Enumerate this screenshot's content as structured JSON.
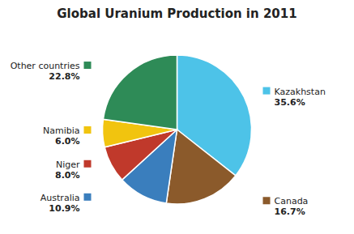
{
  "chart_data": {
    "type": "pie",
    "title": "Global Uranium Production in 2011",
    "categories": [
      "Kazakhstan",
      "Canada",
      "Australia",
      "Niger",
      "Namibia",
      "Other countries"
    ],
    "values": [
      35.6,
      16.7,
      10.9,
      8.0,
      6.0,
      22.8
    ],
    "value_labels": [
      "35.6%",
      "16.7%",
      "10.9%",
      "8.0%",
      "6.0%",
      "22.8%"
    ],
    "colors": [
      "#4DC3E8",
      "#8B5A2B",
      "#3A7EBD",
      "#C0392B",
      "#F1C40F",
      "#2E8B57"
    ],
    "data_labels": true
  }
}
